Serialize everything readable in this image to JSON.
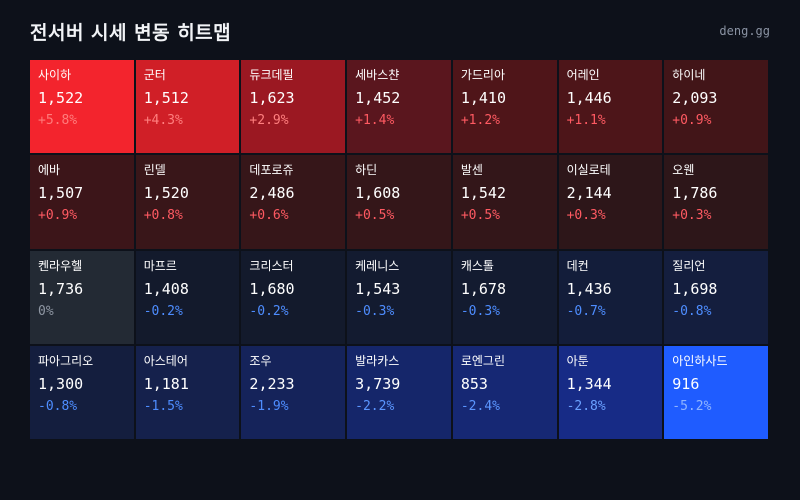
{
  "header": {
    "title": "전서버 시세 변동 히트맵",
    "brand": "deng.gg"
  },
  "cells": [
    {
      "name": "사이하",
      "price": "1,522",
      "change": "+5.8%",
      "bg": "#f3242d",
      "fg": "#ff7b7b"
    },
    {
      "name": "군터",
      "price": "1,512",
      "change": "+4.3%",
      "bg": "#d01f27",
      "fg": "#ff7f7f"
    },
    {
      "name": "듀크데필",
      "price": "1,623",
      "change": "+2.9%",
      "bg": "#9b1822",
      "fg": "#ff7f7f"
    },
    {
      "name": "세바스챤",
      "price": "1,452",
      "change": "+1.4%",
      "bg": "#5a161e",
      "fg": "#ff5a62"
    },
    {
      "name": "가드리아",
      "price": "1,410",
      "change": "+1.2%",
      "bg": "#4f1519",
      "fg": "#ff5a62"
    },
    {
      "name": "어레인",
      "price": "1,446",
      "change": "+1.1%",
      "bg": "#4d1519",
      "fg": "#ff5a62"
    },
    {
      "name": "하이네",
      "price": "2,093",
      "change": "+0.9%",
      "bg": "#421518",
      "fg": "#ff5a62"
    },
    {
      "name": "에바",
      "price": "1,507",
      "change": "+0.9%",
      "bg": "#3c1519",
      "fg": "#ff5a62"
    },
    {
      "name": "린델",
      "price": "1,520",
      "change": "+0.8%",
      "bg": "#391619",
      "fg": "#ff5a62"
    },
    {
      "name": "데포로쥬",
      "price": "2,486",
      "change": "+0.6%",
      "bg": "#361619",
      "fg": "#ff5a62"
    },
    {
      "name": "하딘",
      "price": "1,608",
      "change": "+0.5%",
      "bg": "#341619",
      "fg": "#ff5a62"
    },
    {
      "name": "발센",
      "price": "1,542",
      "change": "+0.5%",
      "bg": "#331619",
      "fg": "#ff5a62"
    },
    {
      "name": "이실로테",
      "price": "2,144",
      "change": "+0.3%",
      "bg": "#2d1619",
      "fg": "#ff5a62"
    },
    {
      "name": "오웬",
      "price": "1,786",
      "change": "+0.3%",
      "bg": "#2d1619",
      "fg": "#ff5a62"
    },
    {
      "name": "켄라우헬",
      "price": "1,736",
      "change": "0%",
      "bg": "#232a34",
      "fg": "#8f97a3"
    },
    {
      "name": "마프르",
      "price": "1,408",
      "change": "-0.2%",
      "bg": "#131a2c",
      "fg": "#4e8dff"
    },
    {
      "name": "크리스터",
      "price": "1,680",
      "change": "-0.2%",
      "bg": "#131a2c",
      "fg": "#4e8dff"
    },
    {
      "name": "케레니스",
      "price": "1,543",
      "change": "-0.3%",
      "bg": "#131b30",
      "fg": "#4e8dff"
    },
    {
      "name": "캐스톨",
      "price": "1,678",
      "change": "-0.3%",
      "bg": "#131b30",
      "fg": "#4e8dff"
    },
    {
      "name": "데컨",
      "price": "1,436",
      "change": "-0.7%",
      "bg": "#131d3a",
      "fg": "#4e8dff"
    },
    {
      "name": "질리언",
      "price": "1,698",
      "change": "-0.8%",
      "bg": "#141e3e",
      "fg": "#4e8dff"
    },
    {
      "name": "파아그리오",
      "price": "1,300",
      "change": "-0.8%",
      "bg": "#141e3e",
      "fg": "#4e8dff"
    },
    {
      "name": "아스테어",
      "price": "1,181",
      "change": "-1.5%",
      "bg": "#15214c",
      "fg": "#4e8dff"
    },
    {
      "name": "조우",
      "price": "2,233",
      "change": "-1.9%",
      "bg": "#15235a",
      "fg": "#4e8dff"
    },
    {
      "name": "발라카스",
      "price": "3,739",
      "change": "-2.2%",
      "bg": "#15266a",
      "fg": "#5b96ff"
    },
    {
      "name": "로엔그린",
      "price": "853",
      "change": "-2.4%",
      "bg": "#162874",
      "fg": "#5b96ff"
    },
    {
      "name": "아툰",
      "price": "1,344",
      "change": "-2.8%",
      "bg": "#172b86",
      "fg": "#6aa0ff"
    },
    {
      "name": "아인하사드",
      "price": "916",
      "change": "-5.2%",
      "bg": "#1f5cff",
      "fg": "#8fb4ff"
    }
  ]
}
